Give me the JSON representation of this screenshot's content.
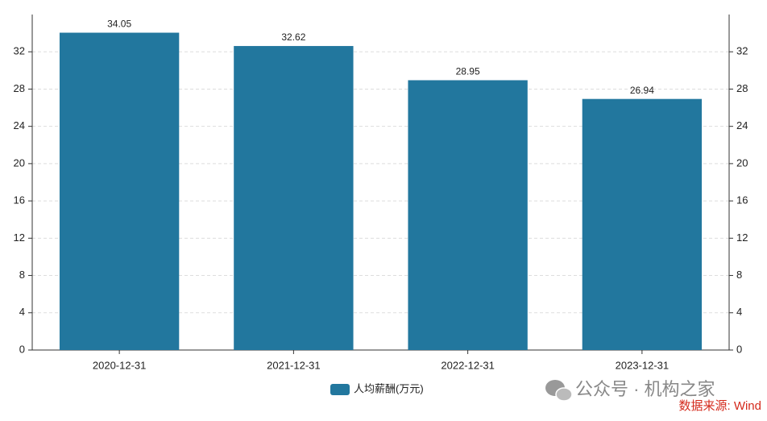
{
  "chart_data": {
    "type": "bar",
    "categories": [
      "2020-12-31",
      "2021-12-31",
      "2022-12-31",
      "2023-12-31"
    ],
    "series": [
      {
        "name": "人均薪酬(万元)",
        "color": "#22779e",
        "values": [
          34.05,
          32.62,
          28.95,
          26.94
        ]
      }
    ],
    "ylim": [
      0,
      36
    ],
    "yticks": [
      0,
      4,
      8,
      12,
      16,
      20,
      24,
      28,
      32
    ],
    "y2lim": [
      0,
      36
    ],
    "y2ticks": [
      0,
      4,
      8,
      12,
      16,
      20,
      24,
      28,
      32
    ],
    "grid": true,
    "legend": "bottom",
    "watermark": "公众号 · 机构之家",
    "source": "数据来源: Wind"
  }
}
